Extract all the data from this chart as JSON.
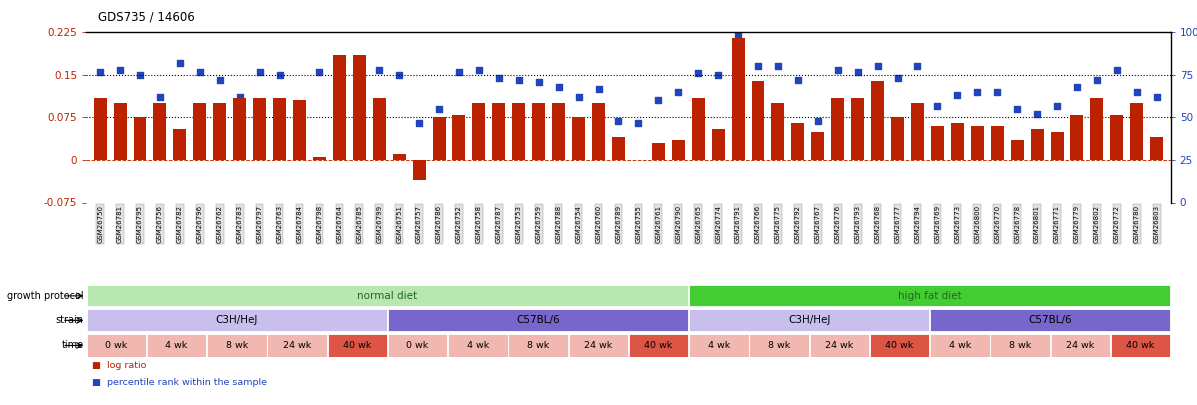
{
  "title": "GDS735 / 14606",
  "samples": [
    "GSM26750",
    "GSM26781",
    "GSM26795",
    "GSM26756",
    "GSM26782",
    "GSM26796",
    "GSM26762",
    "GSM26783",
    "GSM26797",
    "GSM26763",
    "GSM26784",
    "GSM26798",
    "GSM26764",
    "GSM26785",
    "GSM26799",
    "GSM26751",
    "GSM26757",
    "GSM26786",
    "GSM26752",
    "GSM26758",
    "GSM26787",
    "GSM26753",
    "GSM26759",
    "GSM26788",
    "GSM26754",
    "GSM26760",
    "GSM26789",
    "GSM26755",
    "GSM26761",
    "GSM26790",
    "GSM26765",
    "GSM26774",
    "GSM26791",
    "GSM26766",
    "GSM26775",
    "GSM26792",
    "GSM26767",
    "GSM26776",
    "GSM26793",
    "GSM26768",
    "GSM26777",
    "GSM26794",
    "GSM26769",
    "GSM26773",
    "GSM26800",
    "GSM26770",
    "GSM26778",
    "GSM26801",
    "GSM26771",
    "GSM26779",
    "GSM26802",
    "GSM26772",
    "GSM26780",
    "GSM26803"
  ],
  "log_ratio": [
    0.11,
    0.1,
    0.075,
    0.1,
    0.055,
    0.1,
    0.1,
    0.11,
    0.11,
    0.11,
    0.105,
    0.005,
    0.185,
    0.185,
    0.11,
    0.01,
    -0.035,
    0.075,
    0.08,
    0.1,
    0.1,
    0.1,
    0.1,
    0.1,
    0.075,
    0.1,
    0.04,
    0.0,
    0.03,
    0.035,
    0.11,
    0.055,
    0.215,
    0.14,
    0.1,
    0.065,
    0.05,
    0.11,
    0.11,
    0.14,
    0.075,
    0.1,
    0.06,
    0.065,
    0.06,
    0.06,
    0.035,
    0.055,
    0.05,
    0.08,
    0.11,
    0.08,
    0.1,
    0.04
  ],
  "percentile": [
    77,
    78,
    75,
    62,
    82,
    77,
    72,
    62,
    77,
    75,
    57,
    77,
    83,
    80,
    78,
    75,
    47,
    55,
    77,
    78,
    73,
    72,
    71,
    68,
    62,
    67,
    48,
    47,
    60,
    65,
    76,
    75,
    98,
    80,
    80,
    72,
    48,
    78,
    77,
    80,
    73,
    80,
    57,
    63,
    65,
    65,
    55,
    52,
    57,
    68,
    72,
    78,
    65,
    62
  ],
  "growth_protocol_groups": [
    {
      "label": "normal diet",
      "start": 0,
      "end": 30,
      "color": "#b8e8b0"
    },
    {
      "label": "high fat diet",
      "start": 30,
      "end": 54,
      "color": "#44cc33"
    }
  ],
  "strain_groups": [
    {
      "label": "C3H/HeJ",
      "start": 0,
      "end": 15,
      "color": "#c8bfee"
    },
    {
      "label": "C57BL/6",
      "start": 15,
      "end": 30,
      "color": "#7766cc"
    },
    {
      "label": "C3H/HeJ",
      "start": 30,
      "end": 42,
      "color": "#c8bfee"
    },
    {
      "label": "C57BL/6",
      "start": 42,
      "end": 54,
      "color": "#7766cc"
    }
  ],
  "time_groups": [
    {
      "label": "0 wk",
      "start": 0,
      "end": 3,
      "color": "#f0b8b0"
    },
    {
      "label": "4 wk",
      "start": 3,
      "end": 6,
      "color": "#f0b8b0"
    },
    {
      "label": "8 wk",
      "start": 6,
      "end": 9,
      "color": "#f0b8b0"
    },
    {
      "label": "24 wk",
      "start": 9,
      "end": 12,
      "color": "#f0b8b0"
    },
    {
      "label": "40 wk",
      "start": 12,
      "end": 15,
      "color": "#dd5544"
    },
    {
      "label": "0 wk",
      "start": 15,
      "end": 18,
      "color": "#f0b8b0"
    },
    {
      "label": "4 wk",
      "start": 18,
      "end": 21,
      "color": "#f0b8b0"
    },
    {
      "label": "8 wk",
      "start": 21,
      "end": 24,
      "color": "#f0b8b0"
    },
    {
      "label": "24 wk",
      "start": 24,
      "end": 27,
      "color": "#f0b8b0"
    },
    {
      "label": "40 wk",
      "start": 27,
      "end": 30,
      "color": "#dd5544"
    },
    {
      "label": "4 wk",
      "start": 30,
      "end": 33,
      "color": "#f0b8b0"
    },
    {
      "label": "8 wk",
      "start": 33,
      "end": 36,
      "color": "#f0b8b0"
    },
    {
      "label": "24 wk",
      "start": 36,
      "end": 39,
      "color": "#f0b8b0"
    },
    {
      "label": "40 wk",
      "start": 39,
      "end": 42,
      "color": "#dd5544"
    },
    {
      "label": "4 wk",
      "start": 42,
      "end": 45,
      "color": "#f0b8b0"
    },
    {
      "label": "8 wk",
      "start": 45,
      "end": 48,
      "color": "#f0b8b0"
    },
    {
      "label": "24 wk",
      "start": 48,
      "end": 51,
      "color": "#f0b8b0"
    },
    {
      "label": "40 wk",
      "start": 51,
      "end": 54,
      "color": "#dd5544"
    }
  ],
  "ylim_left": [
    -0.075,
    0.225
  ],
  "ylim_right": [
    0,
    100
  ],
  "yticks_left": [
    -0.075,
    0,
    0.075,
    0.15,
    0.225
  ],
  "yticks_right": [
    0,
    25,
    50,
    75,
    100
  ],
  "bar_color": "#bb2200",
  "scatter_color": "#2244bb",
  "hline_y_left": [
    0.075,
    0.15
  ],
  "zero_line_color": "#cc3300",
  "legend_items": [
    {
      "label": "log ratio",
      "color": "#bb2200"
    },
    {
      "label": "percentile rank within the sample",
      "color": "#2244bb"
    }
  ]
}
